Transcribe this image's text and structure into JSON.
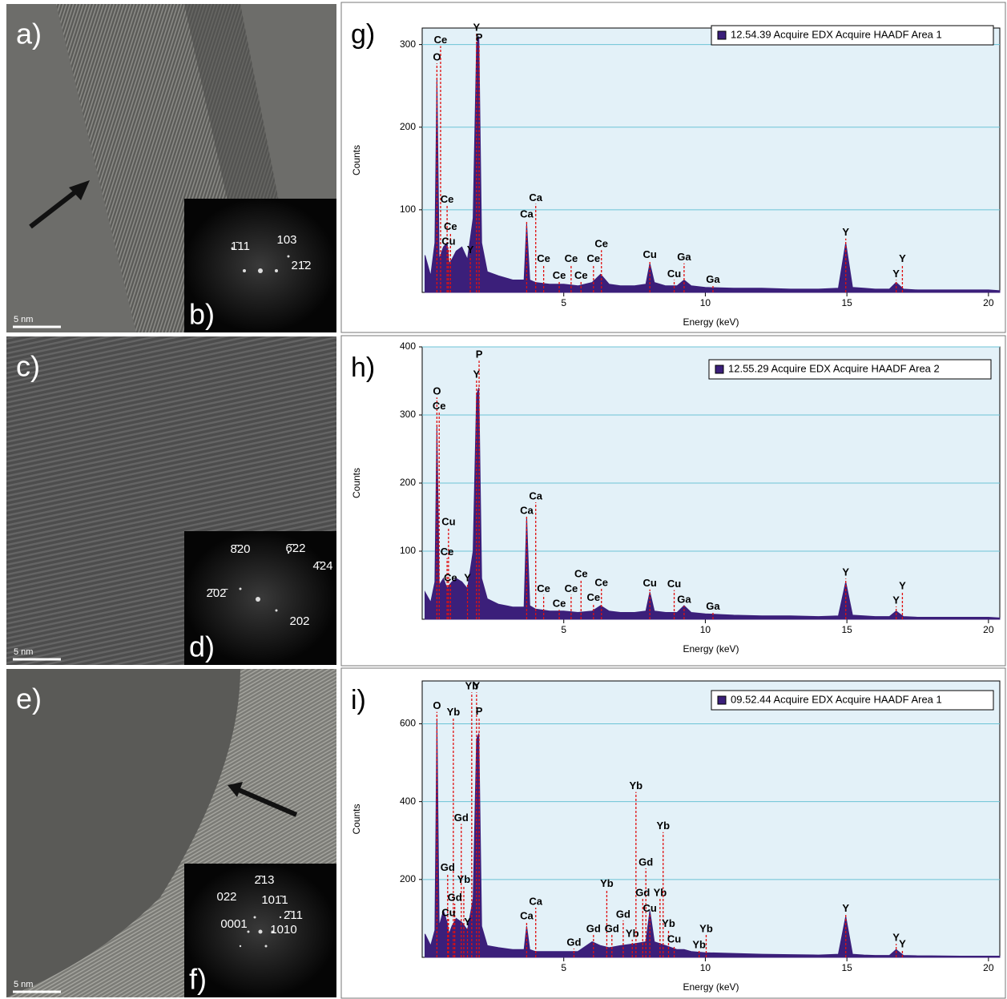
{
  "panels": [
    {
      "letter": "a)",
      "scale_bar": "5 nm",
      "inset": {
        "letter": "b)",
        "indices": [
          "1̄11",
          "103",
          "21̄2"
        ]
      }
    },
    {
      "letter": "c)",
      "scale_bar": "5 nm",
      "inset": {
        "letter": "d)",
        "indices": [
          "8̄20",
          "6̄22",
          "4̄24",
          "2̄02̄",
          "202"
        ]
      }
    },
    {
      "letter": "e)",
      "scale_bar": "5 nm",
      "inset": {
        "letter": "f)",
        "indices": [
          "2̄13",
          "022",
          "101̄1",
          "2̄11",
          "0001",
          "1010"
        ]
      }
    }
  ],
  "chart_data": [
    {
      "type": "area",
      "panel_letter": "g)",
      "x_label": "Energy (keV)",
      "y_label": "Counts",
      "xlim": [
        0,
        20.4
      ],
      "ylim": [
        0,
        320
      ],
      "xticks": [
        5,
        10,
        15,
        20
      ],
      "yticks": [
        100,
        200,
        300
      ],
      "grid": true,
      "label_color": "#e01010",
      "x": [
        0.1,
        0.3,
        0.45,
        0.52,
        0.6,
        0.75,
        0.88,
        0.95,
        1.05,
        1.2,
        1.4,
        1.6,
        1.8,
        1.92,
        2.0,
        2.1,
        2.3,
        2.7,
        3.2,
        3.6,
        3.69,
        3.8,
        4.0,
        4.5,
        5.0,
        5.5,
        6.0,
        6.3,
        6.6,
        7.0,
        7.5,
        7.9,
        8.04,
        8.2,
        8.6,
        9.0,
        9.25,
        9.5,
        10,
        11,
        12,
        13,
        14,
        14.7,
        14.96,
        15.2,
        15.6,
        16,
        16.5,
        16.74,
        17.0,
        17.5,
        18,
        19,
        20,
        20.4
      ],
      "series": [
        {
          "name": "12.54.39 Acquire EDX Acquire HAADF Area 1",
          "color": "#3b1f7a",
          "values": [
            45,
            20,
            60,
            260,
            40,
            55,
            60,
            35,
            40,
            50,
            55,
            40,
            90,
            300,
            310,
            60,
            25,
            20,
            15,
            15,
            83,
            15,
            12,
            10,
            10,
            8,
            12,
            22,
            10,
            8,
            8,
            10,
            35,
            12,
            8,
            8,
            15,
            8,
            6,
            5,
            5,
            4,
            4,
            5,
            60,
            6,
            5,
            4,
            4,
            12,
            4,
            3,
            3,
            3,
            3,
            2
          ]
        }
      ],
      "peak_labels": [
        {
          "label": "O",
          "energy": 0.52,
          "height": 284
        },
        {
          "label": "Ce",
          "energy": 0.65,
          "height": 305
        },
        {
          "label": "Ce",
          "energy": 0.88,
          "height": 112
        },
        {
          "label": "Ce",
          "energy": 1.0,
          "height": 79
        },
        {
          "label": "Cu",
          "energy": 0.93,
          "height": 61
        },
        {
          "label": "Y",
          "energy": 1.7,
          "height": 51
        },
        {
          "label": "Y",
          "energy": 1.92,
          "height": 320
        },
        {
          "label": "P",
          "energy": 2.01,
          "height": 308
        },
        {
          "label": "Ca",
          "energy": 3.69,
          "height": 94
        },
        {
          "label": "Ca",
          "energy": 4.01,
          "height": 114
        },
        {
          "label": "Ce",
          "energy": 4.29,
          "height": 40
        },
        {
          "label": "Ce",
          "energy": 4.84,
          "height": 20
        },
        {
          "label": "Ce",
          "energy": 5.26,
          "height": 40
        },
        {
          "label": "Ce",
          "energy": 5.61,
          "height": 20
        },
        {
          "label": "Ce",
          "energy": 6.05,
          "height": 40
        },
        {
          "label": "Ce",
          "energy": 6.33,
          "height": 58
        },
        {
          "label": "Cu",
          "energy": 8.04,
          "height": 45
        },
        {
          "label": "Cu",
          "energy": 8.9,
          "height": 22
        },
        {
          "label": "Ga",
          "energy": 9.25,
          "height": 42
        },
        {
          "label": "Ga",
          "energy": 10.27,
          "height": 15
        },
        {
          "label": "Y",
          "energy": 14.96,
          "height": 72
        },
        {
          "label": "Y",
          "energy": 16.74,
          "height": 22
        },
        {
          "label": "Y",
          "energy": 16.96,
          "height": 40
        }
      ]
    },
    {
      "type": "area",
      "panel_letter": "h)",
      "x_label": "Energy (keV)",
      "y_label": "Counts",
      "xlim": [
        0,
        20.4
      ],
      "ylim": [
        0,
        400
      ],
      "xticks": [
        5,
        10,
        15,
        20
      ],
      "yticks": [
        100,
        200,
        300,
        400
      ],
      "grid": true,
      "label_color": "#e01010",
      "x": [
        0.1,
        0.3,
        0.45,
        0.52,
        0.6,
        0.75,
        0.88,
        0.95,
        1.05,
        1.2,
        1.4,
        1.6,
        1.8,
        1.92,
        2.0,
        2.1,
        2.3,
        2.7,
        3.2,
        3.6,
        3.69,
        3.8,
        4.0,
        4.5,
        5.0,
        5.5,
        6.0,
        6.3,
        6.6,
        7.0,
        7.5,
        7.9,
        8.04,
        8.2,
        8.6,
        9.0,
        9.25,
        9.5,
        10,
        11,
        12,
        13,
        14,
        14.7,
        14.96,
        15.2,
        15.6,
        16,
        16.5,
        16.74,
        17.0,
        17.5,
        18,
        19,
        20,
        20.4
      ],
      "series": [
        {
          "name": "12.55.29 Acquire EDX Acquire HAADF Area 2",
          "color": "#3b1f7a",
          "values": [
            40,
            25,
            55,
            285,
            50,
            60,
            45,
            50,
            55,
            60,
            55,
            45,
            100,
            330,
            340,
            60,
            30,
            22,
            18,
            18,
            150,
            20,
            15,
            12,
            12,
            10,
            12,
            20,
            12,
            10,
            10,
            12,
            40,
            12,
            10,
            10,
            20,
            10,
            8,
            6,
            5,
            5,
            4,
            5,
            55,
            6,
            5,
            4,
            4,
            12,
            4,
            3,
            3,
            3,
            3,
            2
          ]
        }
      ],
      "peak_labels": [
        {
          "label": "O",
          "energy": 0.52,
          "height": 334
        },
        {
          "label": "Ce",
          "energy": 0.6,
          "height": 312
        },
        {
          "label": "Cu",
          "energy": 0.93,
          "height": 142
        },
        {
          "label": "Ce",
          "energy": 0.88,
          "height": 98
        },
        {
          "label": "Ce",
          "energy": 1.0,
          "height": 60
        },
        {
          "label": "Y",
          "energy": 1.6,
          "height": 60
        },
        {
          "label": "Y",
          "energy": 1.92,
          "height": 359
        },
        {
          "label": "P",
          "energy": 2.01,
          "height": 388
        },
        {
          "label": "Ca",
          "energy": 3.69,
          "height": 159
        },
        {
          "label": "Ca",
          "energy": 4.01,
          "height": 180
        },
        {
          "label": "Ce",
          "energy": 4.29,
          "height": 44
        },
        {
          "label": "Ce",
          "energy": 4.84,
          "height": 22
        },
        {
          "label": "Ce",
          "energy": 5.26,
          "height": 44
        },
        {
          "label": "Ce",
          "energy": 5.61,
          "height": 66
        },
        {
          "label": "Ce",
          "energy": 6.05,
          "height": 31
        },
        {
          "label": "Ce",
          "energy": 6.33,
          "height": 53
        },
        {
          "label": "Cu",
          "energy": 8.04,
          "height": 52
        },
        {
          "label": "Cu",
          "energy": 8.9,
          "height": 51
        },
        {
          "label": "Ga",
          "energy": 9.25,
          "height": 28
        },
        {
          "label": "Ga",
          "energy": 10.27,
          "height": 18
        },
        {
          "label": "Y",
          "energy": 14.96,
          "height": 68
        },
        {
          "label": "Y",
          "energy": 16.74,
          "height": 27
        },
        {
          "label": "Y",
          "energy": 16.96,
          "height": 48
        }
      ]
    },
    {
      "type": "area",
      "panel_letter": "i)",
      "x_label": "Energy (keV)",
      "y_label": "Counts",
      "xlim": [
        0,
        20.4
      ],
      "ylim": [
        0,
        710
      ],
      "xticks": [
        5,
        10,
        15,
        20
      ],
      "yticks": [
        200,
        400,
        600
      ],
      "grid": true,
      "label_color": "#e01010",
      "x": [
        0.1,
        0.3,
        0.45,
        0.52,
        0.6,
        0.75,
        0.88,
        0.95,
        1.05,
        1.2,
        1.4,
        1.6,
        1.8,
        1.92,
        2.0,
        2.1,
        2.3,
        2.7,
        3.2,
        3.6,
        3.69,
        3.8,
        4.0,
        4.5,
        5.0,
        5.5,
        6.0,
        6.3,
        6.6,
        7.0,
        7.5,
        7.9,
        8.04,
        8.2,
        8.6,
        9.0,
        9.25,
        9.5,
        10,
        11,
        12,
        13,
        14,
        14.7,
        14.96,
        15.2,
        15.6,
        16,
        16.5,
        16.74,
        17.0,
        17.5,
        18,
        19,
        20,
        20.4
      ],
      "series": [
        {
          "name": "09.52.44 Acquire EDX Acquire HAADF Area 1",
          "color": "#3b1f7a",
          "values": [
            60,
            30,
            70,
            610,
            80,
            120,
            90,
            60,
            80,
            100,
            90,
            70,
            150,
            560,
            575,
            80,
            30,
            25,
            20,
            20,
            80,
            20,
            15,
            15,
            15,
            15,
            40,
            30,
            25,
            30,
            35,
            40,
            120,
            40,
            30,
            20,
            20,
            15,
            12,
            10,
            8,
            7,
            6,
            8,
            105,
            8,
            6,
            5,
            5,
            20,
            5,
            4,
            4,
            3,
            3,
            3
          ]
        }
      ],
      "peak_labels": [
        {
          "label": "O",
          "energy": 0.52,
          "height": 645
        },
        {
          "label": "Yb",
          "energy": 1.1,
          "height": 629
        },
        {
          "label": "Yb",
          "energy": 1.75,
          "height": 695
        },
        {
          "label": "Y",
          "energy": 1.92,
          "height": 695
        },
        {
          "label": "P",
          "energy": 2.01,
          "height": 631
        },
        {
          "label": "Gd",
          "energy": 1.38,
          "height": 357
        },
        {
          "label": "Gd",
          "energy": 0.9,
          "height": 229
        },
        {
          "label": "Yb",
          "energy": 1.47,
          "height": 198
        },
        {
          "label": "Gd",
          "energy": 1.15,
          "height": 152
        },
        {
          "label": "Cu",
          "energy": 0.93,
          "height": 113
        },
        {
          "label": "Y",
          "energy": 1.6,
          "height": 89
        },
        {
          "label": "Ca",
          "energy": 3.69,
          "height": 105
        },
        {
          "label": "Ca",
          "energy": 4.01,
          "height": 142
        },
        {
          "label": "Gd",
          "energy": 5.36,
          "height": 37
        },
        {
          "label": "Gd",
          "energy": 6.05,
          "height": 72
        },
        {
          "label": "Yb",
          "energy": 6.52,
          "height": 188
        },
        {
          "label": "Gd",
          "energy": 6.7,
          "height": 72
        },
        {
          "label": "Gd",
          "energy": 7.1,
          "height": 109
        },
        {
          "label": "Yb",
          "energy": 7.42,
          "height": 60
        },
        {
          "label": "Yb",
          "energy": 7.55,
          "height": 439
        },
        {
          "label": "Gd",
          "energy": 7.9,
          "height": 243
        },
        {
          "label": "Gd",
          "energy": 7.79,
          "height": 165
        },
        {
          "label": "Yb",
          "energy": 8.4,
          "height": 165
        },
        {
          "label": "Yb",
          "energy": 8.51,
          "height": 336
        },
        {
          "label": "Cu",
          "energy": 8.04,
          "height": 124
        },
        {
          "label": "Yb",
          "energy": 8.7,
          "height": 85
        },
        {
          "label": "Cu",
          "energy": 8.9,
          "height": 45
        },
        {
          "label": "Yb",
          "energy": 9.78,
          "height": 31
        },
        {
          "label": "Yb",
          "energy": 10.03,
          "height": 72
        },
        {
          "label": "Y",
          "energy": 14.96,
          "height": 124
        },
        {
          "label": "Y",
          "energy": 16.74,
          "height": 49
        },
        {
          "label": "Y",
          "energy": 16.96,
          "height": 33
        }
      ]
    }
  ]
}
